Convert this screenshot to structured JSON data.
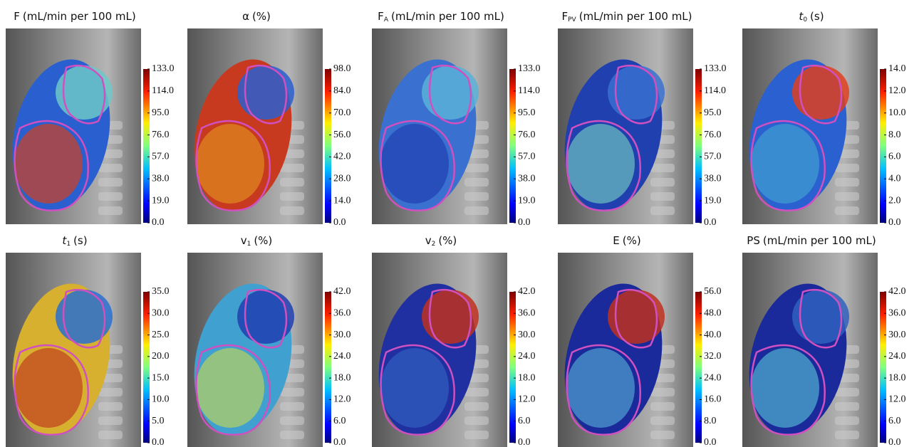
{
  "panels": [
    {
      "title": {
        "main": "F",
        "unit": "(mL/min per 100 mL)"
      },
      "ticks": [
        "133.0",
        "114.0",
        "95.0",
        "76.0",
        "57.0",
        "38.0",
        "19.0",
        "0.0"
      ]
    },
    {
      "title": {
        "main": "α",
        "unit": "(%)"
      },
      "ticks": [
        "98.0",
        "84.0",
        "70.0",
        "56.0",
        "42.0",
        "28.0",
        "14.0",
        "0.0"
      ]
    },
    {
      "title": {
        "main": "F",
        "sub": "A",
        "unit": "(mL/min per 100 mL)"
      },
      "ticks": [
        "133.0",
        "114.0",
        "95.0",
        "76.0",
        "57.0",
        "38.0",
        "19.0",
        "0.0"
      ]
    },
    {
      "title": {
        "main": "F",
        "sub": "PV",
        "unit": "(mL/min per 100 mL)"
      },
      "ticks": [
        "133.0",
        "114.0",
        "95.0",
        "76.0",
        "57.0",
        "38.0",
        "19.0",
        "0.0"
      ]
    },
    {
      "title": {
        "main": "t",
        "sub": "0",
        "unit": "(s)",
        "italic": true
      },
      "ticks": [
        "14.0",
        "12.0",
        "10.0",
        "8.0",
        "6.0",
        "4.0",
        "2.0",
        "0.0"
      ]
    },
    {
      "title": {
        "main": "t",
        "sub": "1",
        "unit": "(s)",
        "italic": true
      },
      "ticks": [
        "35.0",
        "30.0",
        "25.0",
        "20.0",
        "15.0",
        "10.0",
        "5.0",
        "0.0"
      ]
    },
    {
      "title": {
        "main": "v",
        "sub": "1",
        "unit": "(%)"
      },
      "ticks": [
        "42.0",
        "36.0",
        "30.0",
        "24.0",
        "18.0",
        "12.0",
        "6.0",
        "0.0"
      ]
    },
    {
      "title": {
        "main": "v",
        "sub": "2",
        "unit": "(%)"
      },
      "ticks": [
        "42.0",
        "36.0",
        "30.0",
        "24.0",
        "18.0",
        "12.0",
        "6.0",
        "0.0"
      ]
    },
    {
      "title": {
        "main": "E",
        "unit": "(%)"
      },
      "ticks": [
        "56.0",
        "48.0",
        "40.0",
        "32.0",
        "24.0",
        "16.0",
        "8.0",
        "0.0"
      ]
    },
    {
      "title": {
        "main": "PS",
        "unit": "(mL/min per 100 mL)"
      },
      "ticks": [
        "42.0",
        "36.0",
        "30.0",
        "24.0",
        "18.0",
        "12.0",
        "6.0",
        "0.0"
      ]
    }
  ]
}
